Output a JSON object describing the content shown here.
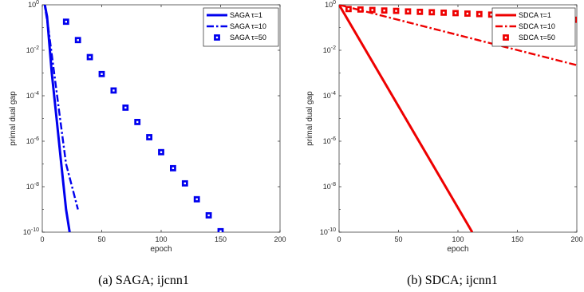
{
  "chart_data": [
    {
      "type": "line",
      "caption": "(a)  SAGA; ijcnn1",
      "xlabel": "epoch",
      "ylabel": "primal dual gap",
      "xlim": [
        0,
        200
      ],
      "ylim": [
        1e-10,
        1
      ],
      "yscale": "log",
      "grid": false,
      "legend_position": "top-right",
      "x_ticks": [
        "0",
        "50",
        "100",
        "150",
        "200"
      ],
      "y_ticks": [
        {
          "base": "10",
          "exp": "0"
        },
        {
          "base": "10",
          "exp": "-2"
        },
        {
          "base": "10",
          "exp": "-4"
        },
        {
          "base": "10",
          "exp": "-6"
        },
        {
          "base": "10",
          "exp": "-8"
        },
        {
          "base": "10",
          "exp": "-10"
        }
      ],
      "series": [
        {
          "name": "SAGA τ=1",
          "style": "solid",
          "color": "#0000ee",
          "x": [
            1,
            4,
            8,
            12,
            16,
            20,
            23
          ],
          "y": [
            2,
            0.3,
            0.001,
            1e-05,
            1e-07,
            1e-09,
            1e-10
          ]
        },
        {
          "name": "SAGA τ=10",
          "style": "dashdot",
          "color": "#0000ee",
          "x": [
            1,
            5,
            10,
            15,
            20,
            25,
            30
          ],
          "y": [
            2,
            0.1,
            0.001,
            1e-05,
            1e-07,
            1e-08,
            1e-09
          ]
        },
        {
          "name": "SAGA τ=50",
          "style": "markers",
          "color": "#0000ee",
          "x": [
            20,
            30,
            40,
            50,
            60,
            70,
            80,
            90,
            100,
            110,
            120,
            130,
            140,
            150
          ],
          "y": [
            0.18,
            0.028,
            0.005,
            0.0009,
            0.00017,
            3e-05,
            7e-06,
            1.5e-06,
            3.3e-07,
            6.5e-08,
            1.4e-08,
            2.8e-09,
            5.5e-10,
            1.1e-10
          ]
        }
      ]
    },
    {
      "type": "line",
      "caption": "(b)  SDCA; ijcnn1",
      "xlabel": "epoch",
      "ylabel": "primal dual gap",
      "xlim": [
        0,
        200
      ],
      "ylim": [
        1e-10,
        1
      ],
      "yscale": "log",
      "grid": false,
      "legend_position": "top-right",
      "x_ticks": [
        "0",
        "50",
        "100",
        "150",
        "200"
      ],
      "y_ticks": [
        {
          "base": "10",
          "exp": "0"
        },
        {
          "base": "10",
          "exp": "-2"
        },
        {
          "base": "10",
          "exp": "-4"
        },
        {
          "base": "10",
          "exp": "-6"
        },
        {
          "base": "10",
          "exp": "-8"
        },
        {
          "base": "10",
          "exp": "-10"
        }
      ],
      "series": [
        {
          "name": "SDCA τ=1",
          "style": "solid",
          "color": "#ee0000",
          "x": [
            0,
            112
          ],
          "y": [
            1,
            1e-10
          ]
        },
        {
          "name": "SDCA τ=10",
          "style": "dashdot",
          "color": "#ee0000",
          "x": [
            0,
            200
          ],
          "y": [
            1,
            0.0022
          ]
        },
        {
          "name": "SDCA τ=50",
          "style": "markers",
          "color": "#ee0000",
          "x": [
            8,
            18,
            28,
            38,
            48,
            58,
            68,
            78,
            88,
            98,
            108,
            118,
            128,
            138,
            148,
            158,
            168,
            178,
            188,
            198
          ],
          "y": [
            0.65,
            0.62,
            0.59,
            0.56,
            0.54,
            0.51,
            0.49,
            0.47,
            0.45,
            0.43,
            0.41,
            0.39,
            0.37,
            0.35,
            0.33,
            0.31,
            0.3,
            0.28,
            0.26,
            0.22
          ]
        }
      ]
    }
  ]
}
